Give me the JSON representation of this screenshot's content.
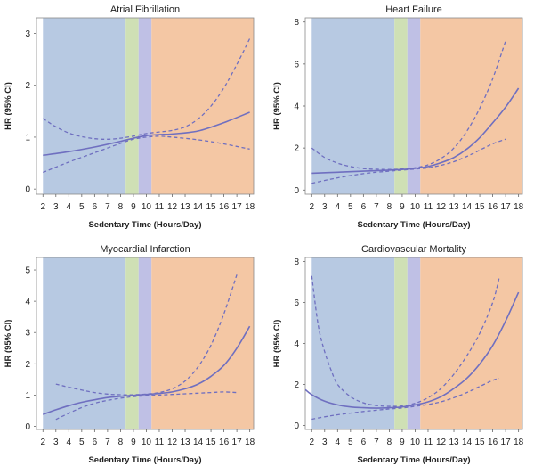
{
  "chart_data": [
    {
      "type": "line",
      "title": "Atrial Fibrillation",
      "xlabel": "Sedentary Time (Hours/Day)",
      "ylabel": "HR (95% CI)",
      "xlim": [
        1.5,
        18.3
      ],
      "ylim": [
        -0.1,
        3.3
      ],
      "x_ticks": [
        2,
        3,
        4,
        5,
        6,
        7,
        8,
        9,
        10,
        11,
        12,
        13,
        14,
        15,
        16,
        17,
        18
      ],
      "y_ticks": [
        0,
        1,
        2,
        3
      ],
      "bands": [
        {
          "from": 2,
          "to": 8.4,
          "color": "#b7c9e2"
        },
        {
          "from": 8.4,
          "to": 9.4,
          "color": "#cfe0b5"
        },
        {
          "from": 9.4,
          "to": 10.4,
          "color": "#bfc0e5"
        },
        {
          "from": 10.4,
          "to": 18.3,
          "color": "#f4c7a4"
        }
      ],
      "series": [
        {
          "role": "estimate",
          "x": [
            2,
            4,
            6,
            8,
            9,
            10,
            11,
            12,
            14,
            16,
            18
          ],
          "y": [
            0.65,
            0.72,
            0.81,
            0.92,
            0.98,
            1.03,
            1.05,
            1.06,
            1.12,
            1.28,
            1.48
          ]
        },
        {
          "role": "upper_ci",
          "x": [
            2,
            3,
            4,
            5,
            6,
            7,
            8,
            9,
            10,
            11,
            12,
            13,
            14,
            15,
            16,
            17,
            18
          ],
          "y": [
            1.36,
            1.2,
            1.08,
            1.01,
            0.97,
            0.96,
            0.98,
            1.02,
            1.07,
            1.1,
            1.13,
            1.2,
            1.35,
            1.6,
            1.95,
            2.4,
            2.9
          ]
        },
        {
          "role": "lower_ci",
          "x": [
            2,
            4,
            6,
            8,
            9,
            10,
            11,
            12,
            14,
            16,
            18
          ],
          "y": [
            0.32,
            0.52,
            0.7,
            0.88,
            0.96,
            1.0,
            1.02,
            1.0,
            0.95,
            0.87,
            0.77
          ]
        }
      ]
    },
    {
      "type": "line",
      "title": "Heart Failure",
      "xlabel": "Sedentary Time (Hours/Day)",
      "ylabel": "HR (95% CI)",
      "xlim": [
        1.5,
        18.3
      ],
      "ylim": [
        -0.2,
        8.2
      ],
      "x_ticks": [
        2,
        3,
        4,
        5,
        6,
        7,
        8,
        9,
        10,
        11,
        12,
        13,
        14,
        15,
        16,
        17,
        18
      ],
      "y_ticks": [
        0,
        2,
        4,
        6,
        8
      ],
      "bands": [
        {
          "from": 2,
          "to": 8.4,
          "color": "#b7c9e2"
        },
        {
          "from": 8.4,
          "to": 9.4,
          "color": "#cfe0b5"
        },
        {
          "from": 9.4,
          "to": 10.4,
          "color": "#bfc0e5"
        },
        {
          "from": 10.4,
          "to": 18.3,
          "color": "#f4c7a4"
        }
      ],
      "series": [
        {
          "role": "estimate",
          "x": [
            2,
            4,
            6,
            8,
            9,
            10,
            11,
            12,
            13,
            14,
            15,
            16,
            17,
            18
          ],
          "y": [
            0.8,
            0.85,
            0.9,
            0.95,
            0.98,
            1.03,
            1.12,
            1.3,
            1.55,
            1.95,
            2.5,
            3.2,
            3.95,
            4.85
          ]
        },
        {
          "role": "upper_ci",
          "x": [
            2,
            3,
            4,
            5,
            6,
            7,
            8,
            9,
            10,
            11,
            12,
            13,
            14,
            15,
            16,
            17
          ],
          "y": [
            2.0,
            1.55,
            1.28,
            1.12,
            1.02,
            0.99,
            0.98,
            1.0,
            1.06,
            1.2,
            1.5,
            2.0,
            2.8,
            3.9,
            5.3,
            7.1
          ]
        },
        {
          "role": "lower_ci",
          "x": [
            2,
            4,
            6,
            8,
            9,
            10,
            11,
            12,
            13,
            14,
            15,
            16,
            17
          ],
          "y": [
            0.32,
            0.58,
            0.78,
            0.9,
            0.95,
            1.0,
            1.06,
            1.18,
            1.35,
            1.6,
            1.9,
            2.2,
            2.42
          ]
        }
      ]
    },
    {
      "type": "line",
      "title": "Myocardial Infarction",
      "xlabel": "Sedentary Time (Hours/Day)",
      "ylabel": "HR (95% CI)",
      "xlim": [
        1.5,
        18.3
      ],
      "ylim": [
        -0.1,
        5.4
      ],
      "x_ticks": [
        2,
        3,
        4,
        5,
        6,
        7,
        8,
        9,
        10,
        11,
        12,
        13,
        14,
        15,
        16,
        17,
        18
      ],
      "y_ticks": [
        0,
        1,
        2,
        3,
        4,
        5
      ],
      "bands": [
        {
          "from": 2,
          "to": 8.4,
          "color": "#b7c9e2"
        },
        {
          "from": 8.4,
          "to": 9.4,
          "color": "#cfe0b5"
        },
        {
          "from": 9.4,
          "to": 10.4,
          "color": "#bfc0e5"
        },
        {
          "from": 10.4,
          "to": 18.3,
          "color": "#f4c7a4"
        }
      ],
      "series": [
        {
          "role": "estimate",
          "x": [
            2,
            3,
            4,
            5,
            6,
            7,
            8,
            9,
            10,
            11,
            12,
            13,
            14,
            15,
            16,
            17,
            18
          ],
          "y": [
            0.38,
            0.53,
            0.66,
            0.77,
            0.85,
            0.92,
            0.96,
            0.99,
            1.02,
            1.05,
            1.1,
            1.2,
            1.35,
            1.6,
            1.95,
            2.5,
            3.2
          ]
        },
        {
          "role": "upper_ci",
          "x": [
            3,
            4,
            5,
            6,
            7,
            8,
            9,
            10,
            11,
            12,
            13,
            14,
            15,
            16,
            17
          ],
          "y": [
            1.35,
            1.25,
            1.16,
            1.08,
            1.03,
            1.01,
            1.01,
            1.03,
            1.08,
            1.2,
            1.45,
            1.9,
            2.6,
            3.6,
            4.85
          ]
        },
        {
          "role": "lower_ci",
          "x": [
            3,
            4,
            5,
            6,
            7,
            8,
            9,
            10,
            11,
            12,
            13,
            14,
            15,
            16,
            17
          ],
          "y": [
            0.22,
            0.42,
            0.6,
            0.74,
            0.83,
            0.9,
            0.95,
            0.98,
            1.0,
            1.02,
            1.04,
            1.06,
            1.08,
            1.1,
            1.08
          ]
        }
      ]
    },
    {
      "type": "line",
      "title": "Cardiovascular Mortality",
      "xlabel": "Sedentary Time (Hours/Day)",
      "ylabel": "HR (95% CI)",
      "xlim": [
        1.5,
        18.3
      ],
      "ylim": [
        -0.2,
        8.2
      ],
      "x_ticks": [
        2,
        3,
        4,
        5,
        6,
        7,
        8,
        9,
        10,
        11,
        12,
        13,
        14,
        15,
        16,
        17,
        18
      ],
      "y_ticks": [
        0,
        2,
        4,
        6,
        8
      ],
      "bands": [
        {
          "from": 2,
          "to": 8.4,
          "color": "#b7c9e2"
        },
        {
          "from": 8.4,
          "to": 9.4,
          "color": "#cfe0b5"
        },
        {
          "from": 9.4,
          "to": 10.4,
          "color": "#bfc0e5"
        },
        {
          "from": 10.4,
          "to": 18.3,
          "color": "#f4c7a4"
        }
      ],
      "series": [
        {
          "role": "estimate",
          "x": [
            1.5,
            2,
            3,
            4,
            5,
            6,
            7,
            8,
            9,
            10,
            11,
            12,
            13,
            14,
            15,
            16,
            17,
            18
          ],
          "y": [
            1.75,
            1.5,
            1.18,
            1.0,
            0.9,
            0.86,
            0.84,
            0.86,
            0.9,
            1.0,
            1.15,
            1.4,
            1.8,
            2.3,
            3.0,
            3.9,
            5.1,
            6.5
          ]
        },
        {
          "role": "upper_ci",
          "x": [
            2,
            2.5,
            3,
            3.5,
            4,
            5,
            6,
            7,
            8,
            9,
            10,
            11,
            12,
            13,
            14,
            15,
            16,
            16.5
          ],
          "y": [
            7.3,
            4.9,
            3.6,
            2.7,
            2.0,
            1.4,
            1.1,
            0.97,
            0.93,
            0.95,
            1.08,
            1.35,
            1.8,
            2.5,
            3.4,
            4.5,
            6.0,
            7.2
          ]
        },
        {
          "role": "lower_ci",
          "x": [
            2,
            3,
            4,
            5,
            6,
            7,
            8,
            9,
            10,
            11,
            12,
            13,
            14,
            15,
            16,
            16.5
          ],
          "y": [
            0.3,
            0.42,
            0.52,
            0.6,
            0.68,
            0.74,
            0.8,
            0.85,
            0.93,
            1.02,
            1.15,
            1.35,
            1.6,
            1.9,
            2.2,
            2.3
          ]
        }
      ]
    }
  ]
}
